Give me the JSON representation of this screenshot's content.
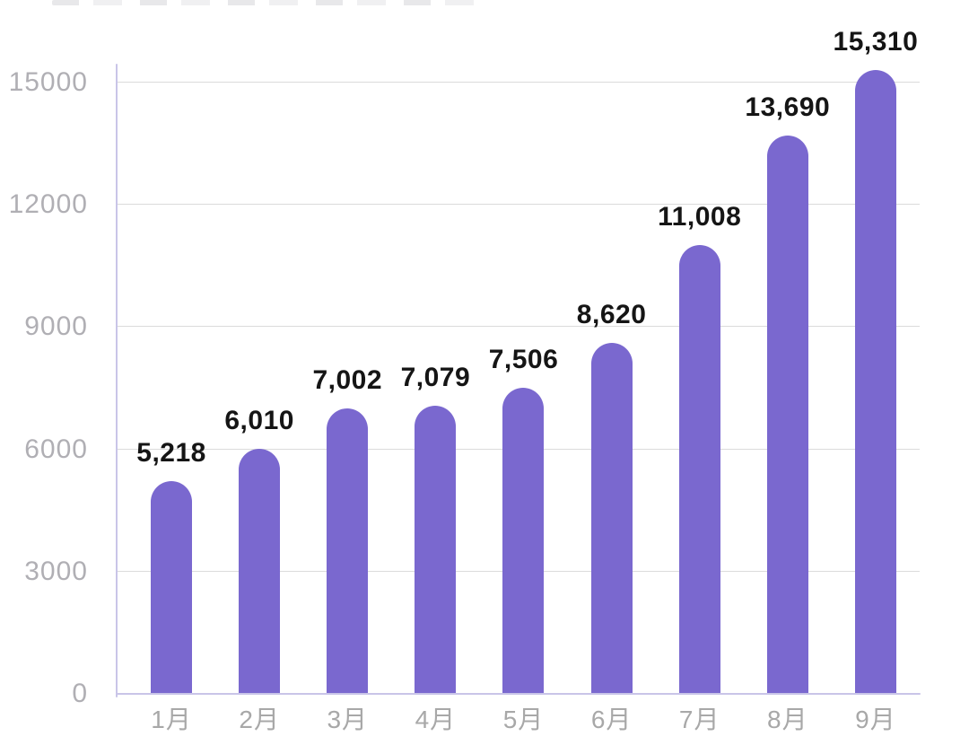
{
  "chart_data": {
    "type": "bar",
    "categories": [
      "1月",
      "2月",
      "3月",
      "4月",
      "5月",
      "6月",
      "7月",
      "8月",
      "9月"
    ],
    "values": [
      5218,
      6010,
      7002,
      7079,
      7506,
      8620,
      11008,
      13690,
      15310
    ],
    "value_labels": [
      "5,218",
      "6,010",
      "7,002",
      "7,079",
      "7,506",
      "8,620",
      "11,008",
      "13,690",
      "15,310"
    ],
    "title": "",
    "xlabel": "",
    "ylabel": "",
    "ylim": [
      0,
      15000
    ],
    "y_ticks": [
      0,
      3000,
      6000,
      9000,
      12000,
      15000
    ],
    "y_tick_labels": [
      "0",
      "3000",
      "6000",
      "9000",
      "12000",
      "15000"
    ],
    "grid": "horizontal",
    "legend": "none",
    "colors": {
      "bar": "#7A68CF",
      "axis_line": "#C9C5E8",
      "gridline": "#DBDBDB",
      "y_tick_text": "#B0AFB4",
      "x_tick_text": "#A8A8A8",
      "value_label_text": "#151515",
      "background": "#FFFFFF"
    }
  }
}
